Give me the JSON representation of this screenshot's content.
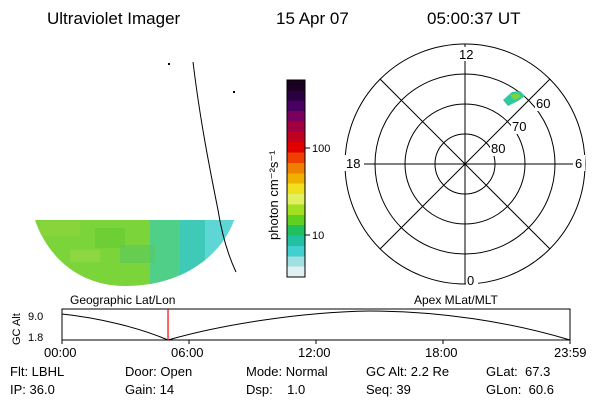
{
  "header": {
    "instrument": "Ultraviolet Imager",
    "date": "15 Apr 07",
    "time": "05:00:37 UT"
  },
  "colorbar": {
    "unit_label": "photon cm⁻²s⁻¹",
    "ticks": [
      "100",
      "10"
    ],
    "colors_top_to_bottom": [
      "#1a0020",
      "#2a0040",
      "#4a0060",
      "#7a0060",
      "#a00040",
      "#c00020",
      "#e00000",
      "#f04000",
      "#f08000",
      "#f0b000",
      "#f0e020",
      "#e0f060",
      "#a0e020",
      "#60d020",
      "#20c060",
      "#20c0a0",
      "#40d0d0",
      "#a0e0e0",
      "#e0f0f0"
    ]
  },
  "left_panel": {
    "caption": "Geographic Lat/Lon"
  },
  "polar_plot": {
    "caption": "Apex MLat/MLT",
    "mlt_labels": {
      "top": "12",
      "left": "18",
      "right": "6",
      "bottom": "0"
    },
    "lat_labels": [
      "60",
      "70",
      "80"
    ]
  },
  "timeline": {
    "y_axis_label": "GC Alt",
    "y_ticks": [
      "9.0",
      "1.8"
    ],
    "x_ticks": [
      "00:00",
      "06:00",
      "12:00",
      "18:00",
      "23:59"
    ],
    "current_time_fraction": 0.2087,
    "marker_color": "#ff0000"
  },
  "status": {
    "filter": "Flt: LBHL",
    "ip": "IP: 36.0",
    "door": "Door: Open",
    "gain": "Gain: 14",
    "mode": "Mode: Normal",
    "dsp": "Dsp:    1.0",
    "gc_alt": "GC Alt: 2.2 Re",
    "seq": "Seq: 39",
    "glat": "GLat:  67.3",
    "glon": "GLon:  60.6"
  }
}
